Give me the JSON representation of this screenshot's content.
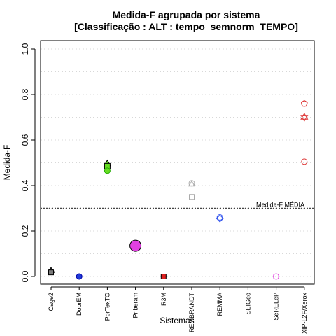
{
  "chart_data": {
    "type": "scatter",
    "title": "Medida-F agrupada por sistema",
    "subtitle": "[Classificação : ALT : tempo_semnorm_TEMPO]",
    "xlabel": "Sistemas",
    "ylabel": "Medida-F",
    "categories": [
      "Cage2",
      "DobrEM",
      "PorTexTO",
      "Priberam",
      "R3M",
      "REMBRANDT",
      "REMMA",
      "SEIGeo",
      "SeRELeP",
      "XIP-L2F/Xerox"
    ],
    "ylim": [
      0,
      1
    ],
    "yticks": [
      "0.0",
      "0.2",
      "0.4",
      "0.6",
      "0.8",
      "1.0"
    ],
    "grid": true,
    "reference_line": {
      "value": 0.3,
      "label": "Medida-F MÉDIA"
    },
    "points": [
      {
        "category": "Cage2",
        "y": 0.02,
        "shape": "circle",
        "fill": "#7a7a7a",
        "stroke": "#000000",
        "size": 4
      },
      {
        "category": "Cage2",
        "y": 0.025,
        "shape": "triangle",
        "fill": "#7a7a7a",
        "stroke": "#000000",
        "size": 4
      },
      {
        "category": "Cage2",
        "y": 0.018,
        "shape": "square",
        "fill": "#7a7a7a",
        "stroke": "#000000",
        "size": 3.5
      },
      {
        "category": "DobrEM",
        "y": 0.0,
        "shape": "circle",
        "fill": "#1f3bd6",
        "stroke": "#0000aa",
        "size": 4
      },
      {
        "category": "PorTexTO",
        "y": 0.495,
        "shape": "triangle",
        "fill": "#66dd22",
        "stroke": "#000000",
        "size": 4.5
      },
      {
        "category": "PorTexTO",
        "y": 0.485,
        "shape": "square",
        "fill": "#66dd22",
        "stroke": "#000000",
        "size": 4
      },
      {
        "category": "PorTexTO",
        "y": 0.465,
        "shape": "circle",
        "fill": "#66dd22",
        "stroke": "#22aa00",
        "size": 4
      },
      {
        "category": "Priberam",
        "y": 0.135,
        "shape": "circle",
        "fill": "#e040e0",
        "stroke": "#000000",
        "size": 8
      },
      {
        "category": "R3M",
        "y": 0.0,
        "shape": "circle",
        "fill": "#dd2222",
        "stroke": "#000000",
        "size": 3.5
      },
      {
        "category": "R3M",
        "y": 0.0,
        "shape": "square",
        "fill": "#dd2222",
        "stroke": "#000000",
        "size": 3.5
      },
      {
        "category": "REMBRANDT",
        "y": 0.41,
        "shape": "circle",
        "fill": "none",
        "stroke": "#aaaaaa",
        "size": 4
      },
      {
        "category": "REMBRANDT",
        "y": 0.405,
        "shape": "triangle",
        "fill": "none",
        "stroke": "#aaaaaa",
        "size": 4
      },
      {
        "category": "REMBRANDT",
        "y": 0.35,
        "shape": "square",
        "fill": "none",
        "stroke": "#aaaaaa",
        "size": 3.5
      },
      {
        "category": "REMMA",
        "y": 0.26,
        "shape": "circle",
        "fill": "none",
        "stroke": "#3355ee",
        "size": 4
      },
      {
        "category": "REMMA",
        "y": 0.255,
        "shape": "diamond",
        "fill": "none",
        "stroke": "#3355ee",
        "size": 4
      },
      {
        "category": "SeRELeP",
        "y": 0.0,
        "shape": "circle",
        "fill": "none",
        "stroke": "#e040e0",
        "size": 4
      },
      {
        "category": "SeRELeP",
        "y": 0.0,
        "shape": "square",
        "fill": "none",
        "stroke": "#e040e0",
        "size": 3.5
      },
      {
        "category": "XIP-L2F/Xerox",
        "y": 0.76,
        "shape": "circle",
        "fill": "none",
        "stroke": "#dd3333",
        "size": 4
      },
      {
        "category": "XIP-L2F/Xerox",
        "y": 0.76,
        "shape": "pentagon",
        "fill": "none",
        "stroke": "#dd3333",
        "size": 4.5
      },
      {
        "category": "XIP-L2F/Xerox",
        "y": 0.7,
        "shape": "star6",
        "fill": "none",
        "stroke": "#dd3333",
        "size": 5.5
      },
      {
        "category": "XIP-L2F/Xerox",
        "y": 0.505,
        "shape": "circle",
        "fill": "none",
        "stroke": "#dd3333",
        "size": 4
      }
    ]
  }
}
